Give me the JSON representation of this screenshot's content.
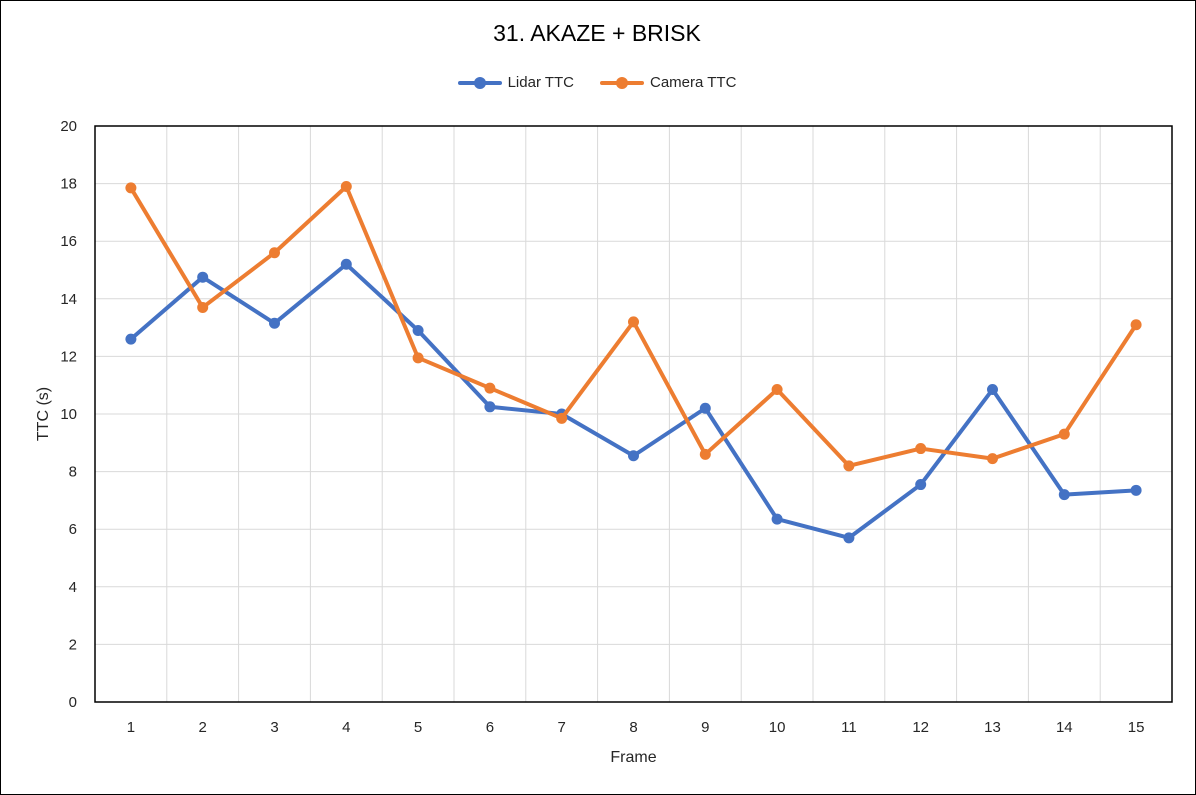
{
  "chart_data": {
    "type": "line",
    "title": "31. AKAZE + BRISK",
    "xlabel": "Frame",
    "ylabel": "TTC (s)",
    "categories": [
      "1",
      "2",
      "3",
      "4",
      "5",
      "6",
      "7",
      "8",
      "9",
      "10",
      "11",
      "12",
      "13",
      "14",
      "15"
    ],
    "ylim": [
      0,
      20
    ],
    "yticks": [
      0,
      2,
      4,
      6,
      8,
      10,
      12,
      14,
      16,
      18,
      20
    ],
    "grid": true,
    "legend_position": "top",
    "series": [
      {
        "name": "Lidar TTC",
        "color": "#4472C4",
        "values": [
          12.6,
          14.75,
          13.15,
          15.2,
          12.9,
          10.25,
          10.0,
          8.55,
          10.2,
          6.35,
          5.7,
          7.55,
          10.85,
          7.2,
          7.35
        ]
      },
      {
        "name": "Camera TTC",
        "color": "#ED7D31",
        "values": [
          17.85,
          13.7,
          15.6,
          17.9,
          11.95,
          10.9,
          9.85,
          13.2,
          8.6,
          10.85,
          8.2,
          8.8,
          8.45,
          9.3,
          13.1
        ]
      }
    ]
  }
}
